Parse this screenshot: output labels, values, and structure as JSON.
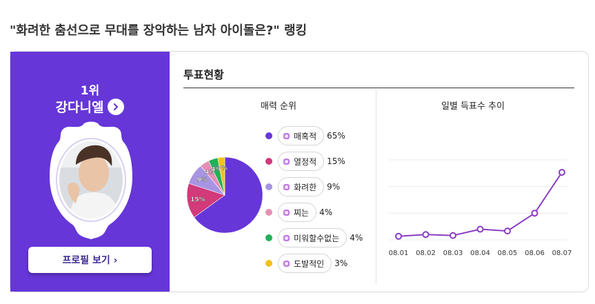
{
  "page": {
    "title": "\"화려한 춤선으로 무대를 장악하는 남자 아이돌은?\" 랭킹"
  },
  "winner": {
    "rank": "1위",
    "name": "강다니엘",
    "profile_button": "프로필 보기 ›"
  },
  "vote": {
    "title": "투표현황",
    "pie_title": "매력 순위",
    "line_title": "일별 득표수 추이"
  },
  "colors": {
    "brand": "#6636d8",
    "line": "#8a3cc4"
  },
  "chart_data": [
    {
      "type": "pie",
      "title": "매력 순위",
      "slices": [
        {
          "name": "매혹적",
          "value": 65,
          "label": "65%",
          "color": "#6636d8"
        },
        {
          "name": "열정적",
          "value": 15,
          "label": "15%",
          "color": "#d23a7a"
        },
        {
          "name": "화려한",
          "value": 9,
          "label": "9%",
          "color": "#a795e3"
        },
        {
          "name": "찌는",
          "value": 4,
          "label": "4%",
          "color": "#e58fb5"
        },
        {
          "name": "미워할수없는",
          "value": 4,
          "label": "4%",
          "color": "#21b15a"
        },
        {
          "name": "도발적인",
          "value": 3,
          "label": "3%",
          "color": "#f4c21a"
        }
      ]
    },
    {
      "type": "line",
      "title": "일별 득표수 추이",
      "categories": [
        "08.01",
        "08.02",
        "08.03",
        "08.04",
        "08.05",
        "08.06",
        "08.07"
      ],
      "values": [
        2,
        3,
        2.5,
        6,
        5,
        15,
        38
      ],
      "ylim": [
        0,
        45
      ],
      "grid": true
    }
  ]
}
